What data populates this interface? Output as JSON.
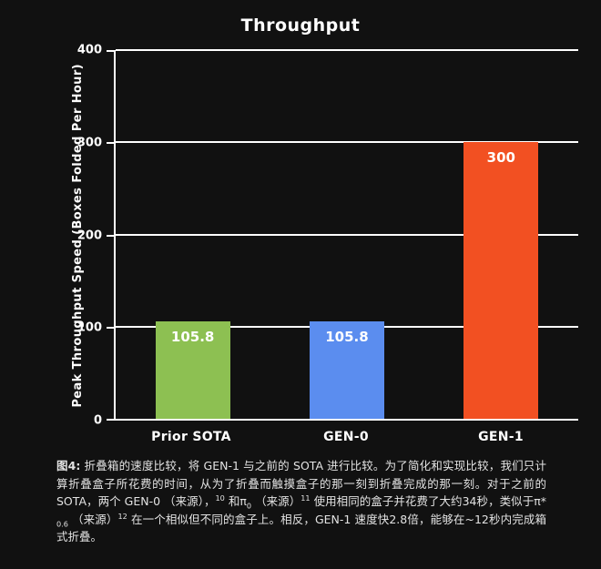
{
  "page": {
    "background": "#111111",
    "text_color": "#ffffff",
    "caption_color": "#e3e3e3"
  },
  "chart_data": {
    "type": "bar",
    "title": "Throughput",
    "categories": [
      "Prior SOTA",
      "GEN-0",
      "GEN-1"
    ],
    "values": [
      105.8,
      105.8,
      300
    ],
    "value_labels": [
      "105.8",
      "105.8",
      "300"
    ],
    "bar_colors": [
      "#8dc052",
      "#5b8def",
      "#f25022"
    ],
    "xlabel": "",
    "ylabel": "Peak Throughput Speed (Boxes Folded Per Hour)",
    "ylim": [
      0,
      400
    ],
    "yticks": [
      0,
      100,
      200,
      300,
      400
    ],
    "grid": true,
    "gridline_color": "#ffffff",
    "legend_position": "none"
  },
  "caption": {
    "runs": [
      {
        "text": "图4:",
        "bold": true
      },
      {
        "text": " 折叠箱的速度比较，将 GEN-1 与之前的 SOTA 进行比较。为了简化和实现比较，我们只计算折叠盒子所花费的时间，从为了折叠而触摸盒子的那一刻到折叠完成的那一刻。对于之前的 SOTA，两个 GEN-0 （来源），"
      },
      {
        "text": "10",
        "sup": true
      },
      {
        "text": " 和π"
      },
      {
        "text": "0",
        "sub": true
      },
      {
        "text": " （来源）"
      },
      {
        "text": "11",
        "sup": true
      },
      {
        "text": " 使用相同的盒子并花费了大约34秒，类似于π* "
      },
      {
        "text": "0.6",
        "sub": true
      },
      {
        "text": " （来源）"
      },
      {
        "text": "12",
        "sup": true
      },
      {
        "text": " 在一个相似但不同的盒子上。相反，GEN-1 速度快2.8倍，能够在~12秒内完成箱式折叠。"
      }
    ]
  }
}
